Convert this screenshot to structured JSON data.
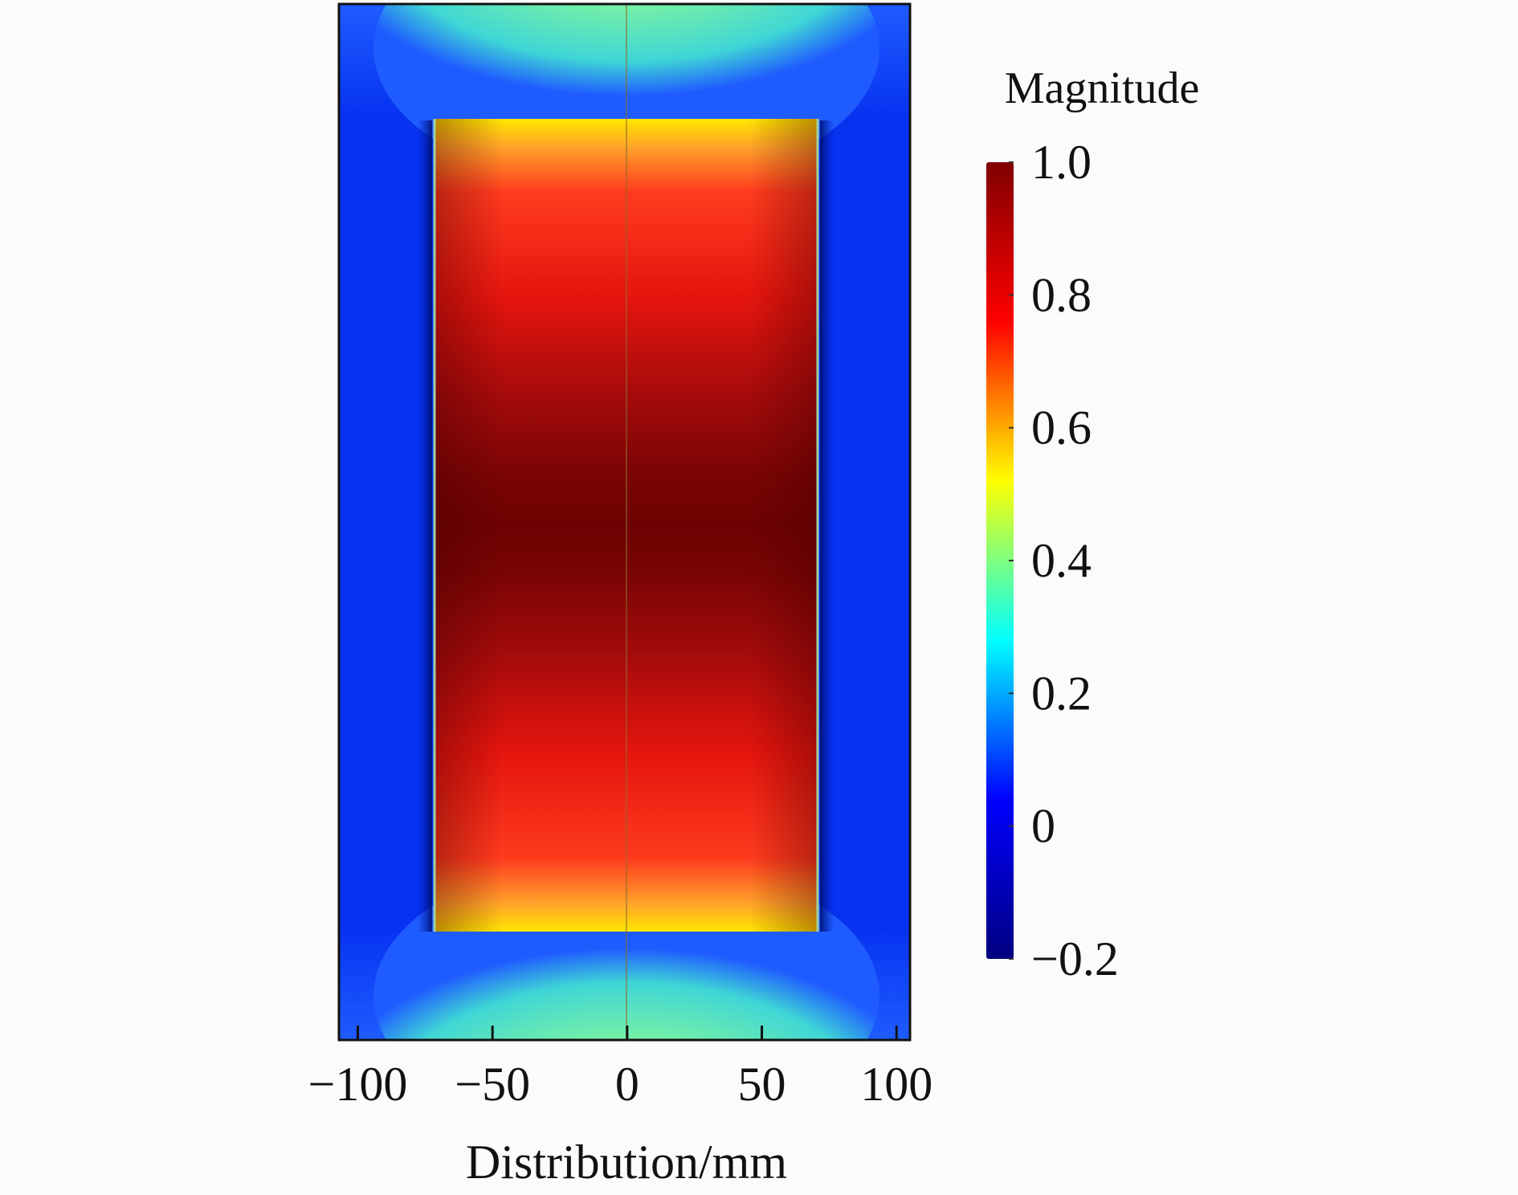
{
  "chart_data": {
    "type": "heatmap",
    "xlabel": "Distribution/mm",
    "xlim": [
      -107,
      105
    ],
    "x_ticks": [
      -100,
      -50,
      0,
      50,
      100
    ],
    "x_tick_labels": [
      "−100",
      "−50",
      "0",
      "50",
      "100"
    ],
    "colorbar": {
      "title": "Magnitude",
      "range": [
        -0.2,
        1.0
      ],
      "ticks": [
        1.0,
        0.8,
        0.6,
        0.4,
        0.2,
        0,
        -0.2
      ],
      "tick_labels": [
        "1.0",
        "0.8",
        "0.6",
        "0.4",
        "0.2",
        "0",
        "−0.2"
      ],
      "colormap": "jet",
      "colormap_stops": [
        "#000080",
        "#0000ff",
        "#00ffff",
        "#ffff00",
        "#ff0000",
        "#800000"
      ]
    },
    "regions": [
      {
        "name": "outer background",
        "value": 0.0
      },
      {
        "name": "top cap",
        "value_range": [
          0.2,
          0.5
        ]
      },
      {
        "name": "bottom cap",
        "value_range": [
          0.2,
          0.5
        ]
      },
      {
        "name": "inner core",
        "x_range": [
          -70,
          70
        ],
        "value_range": [
          0.55,
          1.0
        ]
      }
    ],
    "grid": false
  }
}
